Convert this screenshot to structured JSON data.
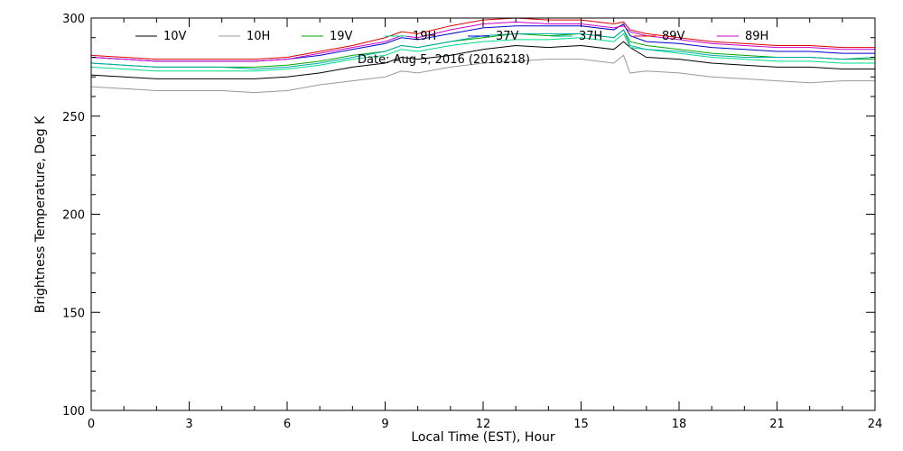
{
  "chart_data": {
    "type": "line",
    "date_label": "Date: Aug  5, 2016 (2016218)",
    "xlabel": "Local Time (EST), Hour",
    "ylabel": "Brightness Temperature, Deg  K",
    "xlim": [
      0,
      24
    ],
    "ylim": [
      100,
      300
    ],
    "x_ticks": [
      0,
      3,
      6,
      9,
      12,
      15,
      18,
      21,
      24
    ],
    "y_ticks": [
      100,
      150,
      200,
      250,
      300
    ],
    "grid": false,
    "legend_position": "top",
    "series": [
      {
        "name": "10V",
        "color": "#000000",
        "x": [
          0,
          1,
          2,
          3,
          4,
          5,
          6,
          7,
          8,
          9,
          9.5,
          10,
          11,
          12,
          13,
          14,
          15,
          16,
          16.3,
          16.5,
          17,
          18,
          19,
          20,
          21,
          22,
          23,
          24
        ],
        "y": [
          271,
          270,
          269,
          269,
          269,
          269,
          270,
          272,
          275,
          277,
          280,
          279,
          281,
          284,
          286,
          285,
          286,
          284,
          288,
          285,
          280,
          279,
          277,
          276,
          275,
          275,
          274,
          274
        ]
      },
      {
        "name": "10H",
        "color": "#999999",
        "x": [
          0,
          1,
          2,
          3,
          4,
          5,
          6,
          7,
          8,
          9,
          9.5,
          10,
          11,
          12,
          13,
          14,
          15,
          16,
          16.3,
          16.5,
          17,
          18,
          19,
          20,
          21,
          22,
          23,
          24
        ],
        "y": [
          265,
          264,
          263,
          263,
          263,
          262,
          263,
          266,
          268,
          270,
          273,
          272,
          275,
          277,
          278,
          279,
          279,
          277,
          281,
          272,
          273,
          272,
          270,
          269,
          268,
          267,
          268,
          268
        ]
      },
      {
        "name": "19V",
        "color": "#00aa00",
        "x": [
          0,
          1,
          2,
          3,
          4,
          5,
          6,
          7,
          8,
          9,
          9.5,
          10,
          11,
          12,
          13,
          14,
          15,
          16,
          16.3,
          16.5,
          17,
          18,
          19,
          20,
          21,
          22,
          23,
          24
        ],
        "y": [
          277,
          276,
          275,
          275,
          275,
          275,
          276,
          278,
          281,
          283,
          286,
          285,
          288,
          290,
          292,
          291,
          292,
          290,
          294,
          288,
          286,
          284,
          282,
          281,
          280,
          280,
          279,
          279
        ]
      },
      {
        "name": "19H",
        "color": "#00dd88",
        "x": [
          0,
          1,
          2,
          3,
          4,
          5,
          6,
          7,
          8,
          9,
          9.5,
          10,
          11,
          12,
          13,
          14,
          15,
          16,
          16.3,
          16.5,
          17,
          18,
          19,
          20,
          21,
          22,
          23,
          24
        ],
        "y": [
          275,
          274,
          273,
          273,
          273,
          273,
          274,
          276,
          279,
          281,
          284,
          283,
          286,
          288,
          289,
          289,
          290,
          288,
          292,
          285,
          284,
          282,
          280,
          279,
          278,
          278,
          277,
          277
        ]
      },
      {
        "name": "37V",
        "color": "#0000cc",
        "x": [
          0,
          1,
          2,
          3,
          4,
          5,
          6,
          7,
          8,
          9,
          9.5,
          10,
          11,
          12,
          13,
          14,
          15,
          16,
          16.3,
          16.5,
          17,
          18,
          19,
          20,
          21,
          22,
          23,
          24
        ],
        "y": [
          280,
          279,
          278,
          278,
          278,
          278,
          279,
          281,
          284,
          287,
          290,
          289,
          292,
          295,
          296,
          296,
          296,
          294,
          297,
          291,
          288,
          287,
          285,
          284,
          283,
          283,
          282,
          282
        ]
      },
      {
        "name": "37H",
        "color": "#00aaaa",
        "x": [
          0,
          1,
          2,
          3,
          4,
          5,
          6,
          7,
          8,
          9,
          9.5,
          10,
          11,
          12,
          13,
          14,
          15,
          16,
          16.3,
          16.5,
          17,
          18,
          19,
          20,
          21,
          22,
          23,
          24
        ],
        "y": [
          277,
          276,
          275,
          275,
          275,
          274,
          275,
          277,
          280,
          283,
          286,
          285,
          288,
          291,
          292,
          292,
          292,
          290,
          294,
          286,
          284,
          283,
          281,
          280,
          280,
          280,
          279,
          280
        ]
      },
      {
        "name": "89V",
        "color": "#dd0000",
        "x": [
          0,
          1,
          2,
          3,
          4,
          5,
          6,
          7,
          8,
          9,
          9.5,
          10,
          11,
          12,
          13,
          14,
          15,
          16,
          16.3,
          16.5,
          17,
          18,
          19,
          20,
          21,
          22,
          23,
          24
        ],
        "y": [
          281,
          280,
          279,
          279,
          279,
          279,
          280,
          283,
          286,
          290,
          293,
          292,
          296,
          299,
          300,
          299,
          299,
          297,
          298,
          294,
          292,
          290,
          288,
          287,
          286,
          286,
          285,
          285
        ]
      },
      {
        "name": "89H",
        "color": "#cc00cc",
        "x": [
          0,
          1,
          2,
          3,
          4,
          5,
          6,
          7,
          8,
          9,
          9.5,
          10,
          11,
          12,
          13,
          14,
          15,
          16,
          16.3,
          16.5,
          17,
          18,
          19,
          20,
          21,
          22,
          23,
          24
        ],
        "y": [
          280,
          279,
          278,
          278,
          278,
          278,
          279,
          282,
          285,
          288,
          291,
          290,
          294,
          297,
          298,
          297,
          297,
          295,
          296,
          293,
          291,
          289,
          287,
          286,
          285,
          285,
          284,
          284
        ]
      }
    ]
  }
}
